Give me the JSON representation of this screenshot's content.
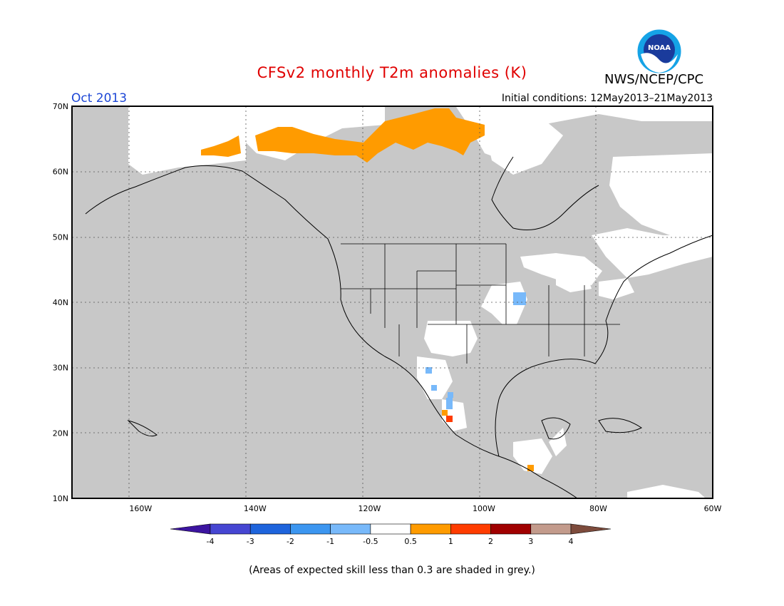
{
  "header": {
    "title": "CFSv2 monthly T2m anomalies (K)",
    "month": "Oct 2013",
    "initial_conditions": "Initial conditions: 12May2013–21May2013",
    "agency": "NWS/NCEP/CPC",
    "logo_text": "NOAA"
  },
  "map": {
    "projection": "lat-lon",
    "lon_range": [
      -172,
      -60
    ],
    "lat_range": [
      10,
      70
    ],
    "lat_labels": [
      "70N",
      "60N",
      "50N",
      "40N",
      "30N",
      "20N",
      "10N"
    ],
    "lat_values": [
      70,
      60,
      50,
      40,
      30,
      20,
      10
    ],
    "lon_labels": [
      "160W",
      "140W",
      "120W",
      "100W",
      "80W",
      "60W"
    ],
    "lon_values": [
      -160,
      -140,
      -120,
      -100,
      -80,
      -60
    ],
    "gridlines": "dotted",
    "background_grey": "#c8c8c8",
    "skill_mask_color": "#c8c8c8"
  },
  "colorbar": {
    "boundaries": [
      "-4",
      "-3",
      "-2",
      "-1",
      "-0.5",
      "0.5",
      "1",
      "2",
      "3",
      "4"
    ],
    "colors": [
      "#3c14a0",
      "#4646d2",
      "#1e64dc",
      "#3c96f0",
      "#78b9fa",
      "#ffffff",
      "#ff9b00",
      "#ff3c00",
      "#a00000",
      "#c39b8c",
      "#7d4b3c"
    ]
  },
  "anomalies": {
    "warm_0_5_to_1": [
      {
        "region": "Alaska North Slope / Yukon",
        "color": "#ff9b00"
      },
      {
        "region": "Northern Canada (NWT)",
        "color": "#ff9b00"
      },
      {
        "region": "Guatemala",
        "color": "#ff9b00"
      }
    ],
    "warm_1_to_2": [
      {
        "region": "Western Mexico coast",
        "color": "#ff3c00"
      }
    ],
    "cool_neg1_to_neg0_5": [
      {
        "region": "Iowa / Illinois",
        "color": "#78b9fa"
      },
      {
        "region": "Northwest Mexico",
        "color": "#78b9fa"
      }
    ]
  },
  "footnote": "(Areas of expected skill less than 0.3 are shaded in grey.)"
}
